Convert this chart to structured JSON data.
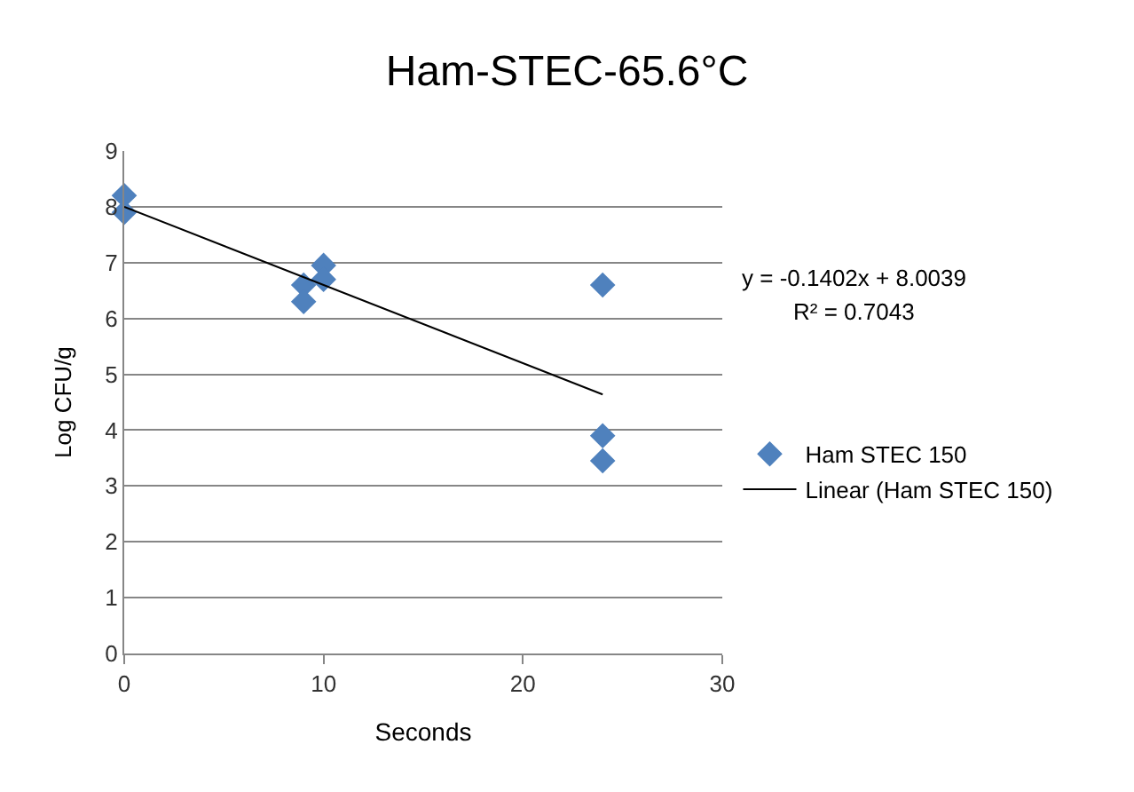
{
  "chart_data": {
    "type": "scatter",
    "title": "Ham-STEC-65.6°C",
    "xlabel": "Seconds",
    "ylabel": "Log CFU/g",
    "x": [
      0,
      0,
      9,
      9,
      10,
      10,
      24,
      24,
      24
    ],
    "series": [
      {
        "name": "Ham STEC 150",
        "color": "#4f81bd",
        "marker": "diamond",
        "values": [
          8.2,
          7.9,
          6.6,
          6.3,
          6.95,
          6.7,
          6.6,
          3.9,
          3.45
        ]
      },
      {
        "name": "Linear (Ham STEC 150)",
        "color": "#000000",
        "type": "line",
        "marker": "none",
        "line_style": "solid",
        "x": [
          0,
          24
        ],
        "values": [
          8.0,
          4.64
        ]
      }
    ],
    "annotations": [
      "y = -0.1402x + 8.0039",
      "R² = 0.7043"
    ],
    "xlim": [
      0,
      30
    ],
    "xticks": [
      0,
      10,
      20,
      30
    ],
    "ylim": [
      0,
      9
    ],
    "yticks": [
      0,
      1,
      2,
      3,
      4,
      5,
      6,
      7,
      8,
      9
    ],
    "grid": "y",
    "legend": "right"
  }
}
